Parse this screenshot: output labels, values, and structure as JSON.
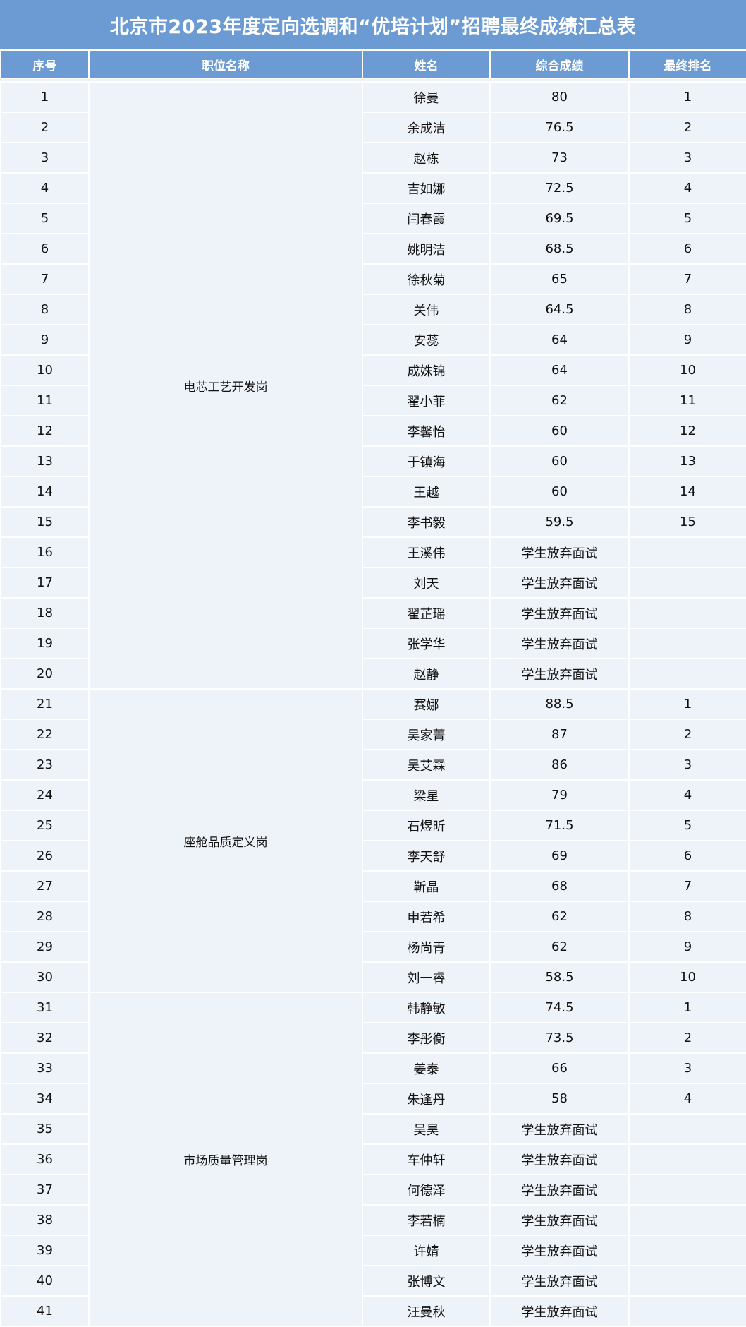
{
  "title": "北京市2023年度定向选调和“优培计划”招聘最终成绩汇总表",
  "headers": [
    "序号",
    "职位名称",
    "姓名",
    "综合成绩",
    "最终排名"
  ],
  "colors": {
    "header_bg": "#6b9bd2",
    "cell_bg": "#eef3fa",
    "grid": "#ffffff"
  },
  "groups": [
    {
      "position": "电芯工艺开发岗",
      "rows": [
        {
          "no": "1",
          "name": "徐曼",
          "score": "80",
          "rank": "1"
        },
        {
          "no": "2",
          "name": "余成洁",
          "score": "76.5",
          "rank": "2"
        },
        {
          "no": "3",
          "name": "赵栋",
          "score": "73",
          "rank": "3"
        },
        {
          "no": "4",
          "name": "吉如娜",
          "score": "72.5",
          "rank": "4"
        },
        {
          "no": "5",
          "name": "闫春霞",
          "score": "69.5",
          "rank": "5"
        },
        {
          "no": "6",
          "name": "姚明洁",
          "score": "68.5",
          "rank": "6"
        },
        {
          "no": "7",
          "name": "徐秋菊",
          "score": "65",
          "rank": "7"
        },
        {
          "no": "8",
          "name": "关伟",
          "score": "64.5",
          "rank": "8"
        },
        {
          "no": "9",
          "name": "安蕊",
          "score": "64",
          "rank": "9"
        },
        {
          "no": "10",
          "name": "成姝锦",
          "score": "64",
          "rank": "10"
        },
        {
          "no": "11",
          "name": "翟小菲",
          "score": "62",
          "rank": "11"
        },
        {
          "no": "12",
          "name": "李馨怡",
          "score": "60",
          "rank": "12"
        },
        {
          "no": "13",
          "name": "于镇海",
          "score": "60",
          "rank": "13"
        },
        {
          "no": "14",
          "name": "王越",
          "score": "60",
          "rank": "14"
        },
        {
          "no": "15",
          "name": "李书毅",
          "score": "59.5",
          "rank": "15"
        },
        {
          "no": "16",
          "name": "王溪伟",
          "score": "学生放弃面试",
          "rank": ""
        },
        {
          "no": "17",
          "name": "刘天",
          "score": "学生放弃面试",
          "rank": ""
        },
        {
          "no": "18",
          "name": "翟芷瑶",
          "score": "学生放弃面试",
          "rank": ""
        },
        {
          "no": "19",
          "name": "张学华",
          "score": "学生放弃面试",
          "rank": ""
        },
        {
          "no": "20",
          "name": "赵静",
          "score": "学生放弃面试",
          "rank": ""
        }
      ]
    },
    {
      "position": "座舱品质定义岗",
      "rows": [
        {
          "no": "21",
          "name": "赛娜",
          "score": "88.5",
          "rank": "1"
        },
        {
          "no": "22",
          "name": "吴家菁",
          "score": "87",
          "rank": "2"
        },
        {
          "no": "23",
          "name": "吴艾霖",
          "score": "86",
          "rank": "3"
        },
        {
          "no": "24",
          "name": "梁星",
          "score": "79",
          "rank": "4"
        },
        {
          "no": "25",
          "name": "石煜昕",
          "score": "71.5",
          "rank": "5"
        },
        {
          "no": "26",
          "name": "李天舒",
          "score": "69",
          "rank": "6"
        },
        {
          "no": "27",
          "name": "靳晶",
          "score": "68",
          "rank": "7"
        },
        {
          "no": "28",
          "name": "申若希",
          "score": "62",
          "rank": "8"
        },
        {
          "no": "29",
          "name": "杨尚青",
          "score": "62",
          "rank": "9"
        },
        {
          "no": "30",
          "name": "刘一睿",
          "score": "58.5",
          "rank": "10"
        }
      ]
    },
    {
      "position": "市场质量管理岗",
      "rows": [
        {
          "no": "31",
          "name": "韩静敏",
          "score": "74.5",
          "rank": "1"
        },
        {
          "no": "32",
          "name": "李彤衡",
          "score": "73.5",
          "rank": "2"
        },
        {
          "no": "33",
          "name": "姜泰",
          "score": "66",
          "rank": "3"
        },
        {
          "no": "34",
          "name": "朱逢丹",
          "score": "58",
          "rank": "4"
        },
        {
          "no": "35",
          "name": "吴昊",
          "score": "学生放弃面试",
          "rank": ""
        },
        {
          "no": "36",
          "name": "车仲轩",
          "score": "学生放弃面试",
          "rank": ""
        },
        {
          "no": "37",
          "name": "何德泽",
          "score": "学生放弃面试",
          "rank": ""
        },
        {
          "no": "38",
          "name": "李若楠",
          "score": "学生放弃面试",
          "rank": ""
        },
        {
          "no": "39",
          "name": "许婧",
          "score": "学生放弃面试",
          "rank": ""
        },
        {
          "no": "40",
          "name": "张博文",
          "score": "学生放弃面试",
          "rank": ""
        },
        {
          "no": "41",
          "name": "汪曼秋",
          "score": "学生放弃面试",
          "rank": ""
        }
      ]
    }
  ]
}
